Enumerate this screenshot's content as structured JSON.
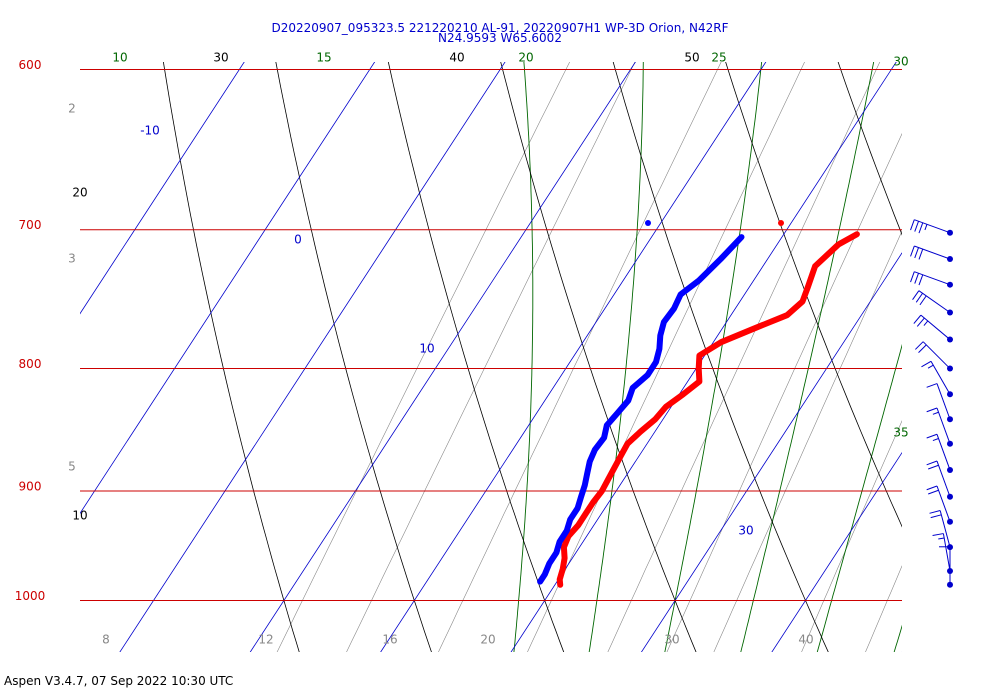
{
  "header": {
    "title_line1": "D20220907_095323.5 221220210 AL-91, 20220907H1 WP-3D Orion, N42RF",
    "title_line2": "N24.9593 W65.6002"
  },
  "footer": {
    "text": "Aspen V3.4.7, 07 Sep 2022  10:30 UTC"
  },
  "chart_data": {
    "type": "skew-t",
    "pressure_labels": [
      600,
      700,
      800,
      900,
      1000
    ],
    "temperature_tick_labels": [
      20,
      30,
      40
    ],
    "isotherm_labels": [
      -10,
      0,
      10,
      30
    ],
    "theta_labels": [
      10,
      20,
      30,
      40,
      50
    ],
    "theta_e_labels": [
      10,
      15,
      20,
      25,
      30,
      35
    ],
    "mixing_ratio_labels": [
      2,
      3,
      5,
      8,
      12,
      16,
      20,
      30,
      40
    ],
    "colors": {
      "isobars": "#cc0000",
      "isotherms": "#0000cc",
      "dry_adiabats": "#000000",
      "moist_adiabats": "#006600",
      "mixing_ratio": "#888888",
      "temperature": "#ff0000",
      "dewpoint": "#0000ff",
      "wind_barbs": "#0000cc"
    },
    "temperature_profile": [
      [
        703,
        15.6
      ],
      [
        710,
        14.7
      ],
      [
        725,
        14.0
      ],
      [
        740,
        14.5
      ],
      [
        750,
        14.8
      ],
      [
        760,
        14.3
      ],
      [
        770,
        12.4
      ],
      [
        780,
        10.6
      ],
      [
        790,
        9.6
      ],
      [
        800,
        10.2
      ],
      [
        810,
        10.9
      ],
      [
        820,
        10.3
      ],
      [
        830,
        9.6
      ],
      [
        840,
        9.4
      ],
      [
        850,
        8.9
      ],
      [
        860,
        8.5
      ],
      [
        870,
        8.6
      ],
      [
        880,
        8.7
      ],
      [
        890,
        8.8
      ],
      [
        900,
        8.9
      ],
      [
        910,
        8.8
      ],
      [
        920,
        8.8
      ],
      [
        930,
        8.8
      ],
      [
        940,
        8.6
      ],
      [
        950,
        8.8
      ],
      [
        960,
        9.4
      ],
      [
        970,
        9.8
      ],
      [
        980,
        10.1
      ],
      [
        985,
        10.4
      ]
    ],
    "dewpoint_profile": [
      [
        705,
        6.9
      ],
      [
        720,
        6.4
      ],
      [
        735,
        5.8
      ],
      [
        745,
        5.1
      ],
      [
        755,
        5.3
      ],
      [
        765,
        5.2
      ],
      [
        775,
        5.6
      ],
      [
        785,
        6.2
      ],
      [
        795,
        6.6
      ],
      [
        805,
        6.6
      ],
      [
        815,
        6.1
      ],
      [
        825,
        6.4
      ],
      [
        835,
        6.2
      ],
      [
        845,
        6.0
      ],
      [
        855,
        6.4
      ],
      [
        865,
        6.3
      ],
      [
        875,
        6.5
      ],
      [
        885,
        6.9
      ],
      [
        895,
        7.3
      ],
      [
        905,
        7.6
      ],
      [
        915,
        7.9
      ],
      [
        925,
        7.9
      ],
      [
        935,
        8.2
      ],
      [
        945,
        8.2
      ],
      [
        955,
        8.5
      ],
      [
        965,
        8.5
      ],
      [
        975,
        8.7
      ],
      [
        982,
        8.7
      ]
    ],
    "wind_barbs": [
      {
        "p": 702,
        "speed": 35,
        "dir": 250
      },
      {
        "p": 720,
        "speed": 30,
        "dir": 250
      },
      {
        "p": 738,
        "speed": 30,
        "dir": 250
      },
      {
        "p": 758,
        "speed": 30,
        "dir": 235
      },
      {
        "p": 778,
        "speed": 25,
        "dir": 230
      },
      {
        "p": 800,
        "speed": 20,
        "dir": 225
      },
      {
        "p": 820,
        "speed": 15,
        "dir": 210
      },
      {
        "p": 840,
        "speed": 10,
        "dir": 200
      },
      {
        "p": 860,
        "speed": 15,
        "dir": 200
      },
      {
        "p": 882,
        "speed": 15,
        "dir": 200
      },
      {
        "p": 905,
        "speed": 20,
        "dir": 200
      },
      {
        "p": 927,
        "speed": 20,
        "dir": 200
      },
      {
        "p": 950,
        "speed": 20,
        "dir": 195
      },
      {
        "p": 972,
        "speed": 15,
        "dir": 190
      },
      {
        "p": 985,
        "speed": 10,
        "dir": 180
      }
    ]
  }
}
